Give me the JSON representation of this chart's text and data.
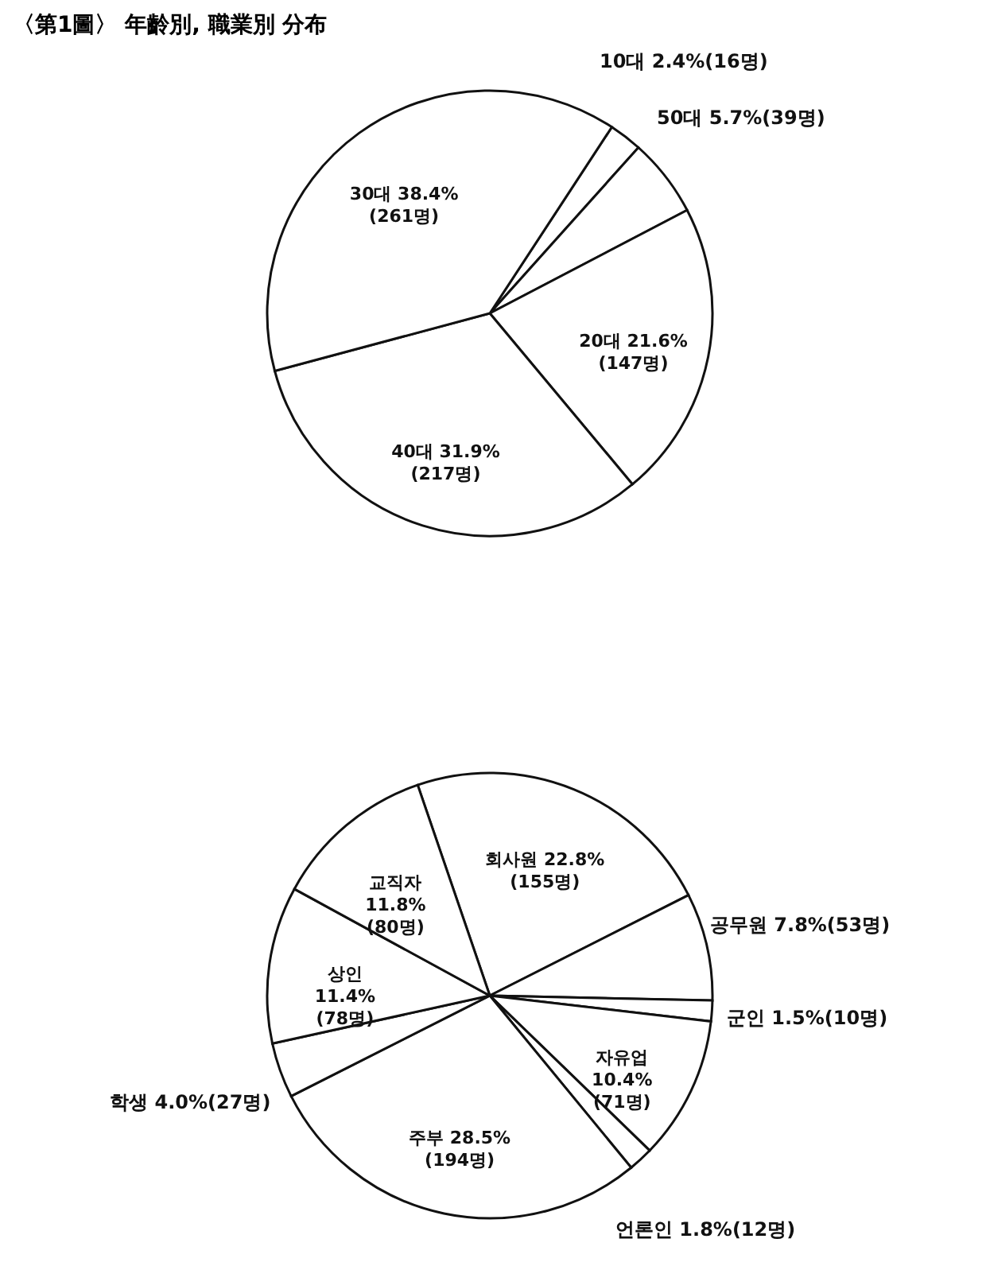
{
  "chart_data": [
    {
      "type": "pie",
      "title": "〈第1圖〉 年齡別, 職業別 分布",
      "categories": [
        "10대",
        "50대",
        "20대",
        "40대",
        "30대"
      ],
      "values": [
        2.4,
        5.7,
        21.6,
        31.9,
        38.4
      ],
      "value_labels": [
        "2.4%(16명)",
        "5.7%(39명)",
        "21.6%(147명)",
        "31.9%(217명)",
        "38.4%(261명)"
      ],
      "colors": [
        "#ffffff",
        "#ffffff",
        "#ffffff",
        "#ffffff",
        "#ffffff"
      ]
    },
    {
      "type": "pie",
      "categories": [
        "회사원",
        "공무원",
        "군인",
        "자유업",
        "언론인",
        "주부",
        "학생",
        "상인",
        "교직자"
      ],
      "values": [
        22.8,
        7.8,
        1.5,
        10.4,
        1.8,
        28.5,
        4.0,
        11.4,
        11.8
      ],
      "value_labels": [
        "22.8%(155명)",
        "7.8%(53명)",
        "1.5%(10명)",
        "10.4%(71명)",
        "1.8%(12명)",
        "28.5%(194명)",
        "4.0%(27명)",
        "11.4%(78명)",
        "11.8%(80명)"
      ],
      "colors": [
        "#ffffff",
        "#ffffff",
        "#ffffff",
        "#ffffff",
        "#ffffff",
        "#ffffff",
        "#ffffff",
        "#ffffff",
        "#ffffff"
      ]
    }
  ]
}
